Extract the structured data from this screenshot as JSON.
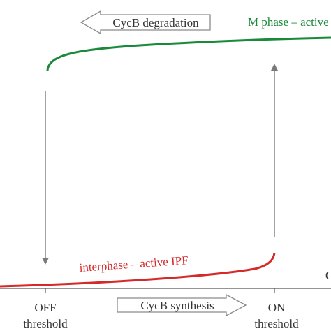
{
  "colors": {
    "m_phase": "#1a8a3a",
    "interphase": "#d42a2a",
    "arrow_gray": "#808080",
    "block_arrow_stroke": "#8a8a8a",
    "text_dark": "#333333",
    "axis": "#555555"
  },
  "labels": {
    "cycb_degradation": "CycB degradation",
    "cycb_synthesis": "CycB synthesis",
    "m_phase": "M phase – active MPF",
    "interphase": "interphase – active IPF",
    "off": "OFF",
    "on": "ON",
    "threshold_off": "threshold",
    "threshold_on": "threshold",
    "axis_end": "C"
  }
}
